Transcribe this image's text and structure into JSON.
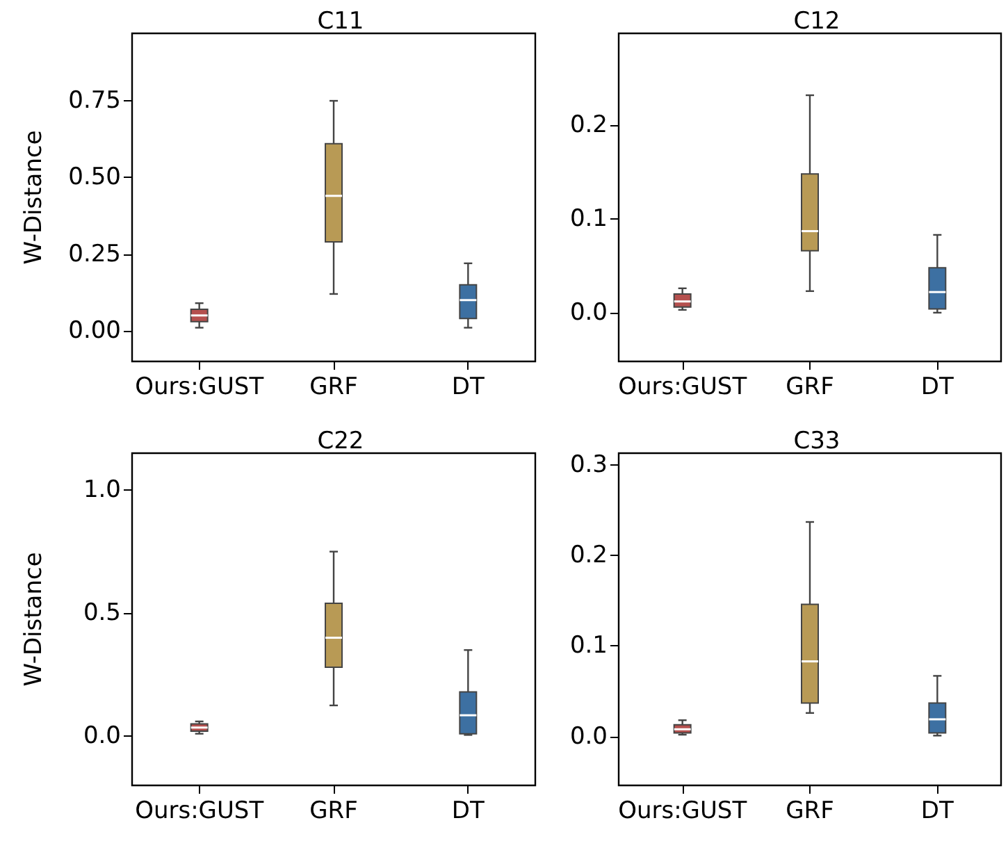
{
  "chart_data": [
    {
      "type": "box",
      "title": "C11",
      "ylabel": "W-Distance",
      "categories": [
        "Ours:GUST",
        "GRF",
        "DT"
      ],
      "colors": [
        "#b5504e",
        "#b89a55",
        "#3d70a2"
      ],
      "ylim": [
        -0.1,
        0.97
      ],
      "yticks": [
        {
          "value": 0,
          "label": "0.00"
        },
        {
          "value": 0.25,
          "label": "0.25"
        },
        {
          "value": 0.5,
          "label": "0.50"
        },
        {
          "value": 0.75,
          "label": "0.75"
        }
      ],
      "boxes": [
        {
          "low": 0.01,
          "q1": 0.03,
          "median": 0.05,
          "q3": 0.07,
          "high": 0.09
        },
        {
          "low": 0.12,
          "q1": 0.29,
          "median": 0.44,
          "q3": 0.61,
          "high": 0.75
        },
        {
          "low": 0.01,
          "q1": 0.04,
          "median": 0.1,
          "q3": 0.15,
          "high": 0.22
        }
      ]
    },
    {
      "type": "box",
      "title": "C12",
      "categories": [
        "Ours:GUST",
        "GRF",
        "DT"
      ],
      "colors": [
        "#b5504e",
        "#b89a55",
        "#3d70a2"
      ],
      "ylim": [
        -0.052,
        0.298
      ],
      "yticks": [
        {
          "value": 0,
          "label": "0.0"
        },
        {
          "value": 0.1,
          "label": "0.1"
        },
        {
          "value": 0.2,
          "label": "0.2"
        }
      ],
      "boxes": [
        {
          "low": 0.003,
          "q1": 0.006,
          "median": 0.012,
          "q3": 0.02,
          "high": 0.026
        },
        {
          "low": 0.023,
          "q1": 0.066,
          "median": 0.087,
          "q3": 0.148,
          "high": 0.232
        },
        {
          "low": 0.0,
          "q1": 0.004,
          "median": 0.022,
          "q3": 0.048,
          "high": 0.083
        }
      ]
    },
    {
      "type": "box",
      "title": "C22",
      "ylabel": "W-Distance",
      "categories": [
        "Ours:GUST",
        "GRF",
        "DT"
      ],
      "colors": [
        "#b5504e",
        "#b89a55",
        "#3d70a2"
      ],
      "ylim": [
        -0.2,
        1.15
      ],
      "yticks": [
        {
          "value": 0,
          "label": "0.0"
        },
        {
          "value": 0.5,
          "label": "0.5"
        },
        {
          "value": 1,
          "label": "1.0"
        }
      ],
      "boxes": [
        {
          "low": 0.01,
          "q1": 0.02,
          "median": 0.035,
          "q3": 0.05,
          "high": 0.06
        },
        {
          "low": 0.125,
          "q1": 0.28,
          "median": 0.4,
          "q3": 0.54,
          "high": 0.75
        },
        {
          "low": 0.005,
          "q1": 0.01,
          "median": 0.085,
          "q3": 0.18,
          "high": 0.35
        }
      ]
    },
    {
      "type": "box",
      "title": "C33",
      "categories": [
        "Ours:GUST",
        "GRF",
        "DT"
      ],
      "colors": [
        "#b5504e",
        "#b89a55",
        "#3d70a2"
      ],
      "ylim": [
        -0.054,
        0.313
      ],
      "yticks": [
        {
          "value": 0,
          "label": "0.0"
        },
        {
          "value": 0.1,
          "label": "0.1"
        },
        {
          "value": 0.2,
          "label": "0.2"
        },
        {
          "value": 0.3,
          "label": "0.3"
        }
      ],
      "boxes": [
        {
          "low": 0.002,
          "q1": 0.004,
          "median": 0.008,
          "q3": 0.013,
          "high": 0.018
        },
        {
          "low": 0.026,
          "q1": 0.037,
          "median": 0.083,
          "q3": 0.146,
          "high": 0.237
        },
        {
          "low": 0.001,
          "q1": 0.004,
          "median": 0.019,
          "q3": 0.037,
          "high": 0.067
        }
      ]
    }
  ]
}
